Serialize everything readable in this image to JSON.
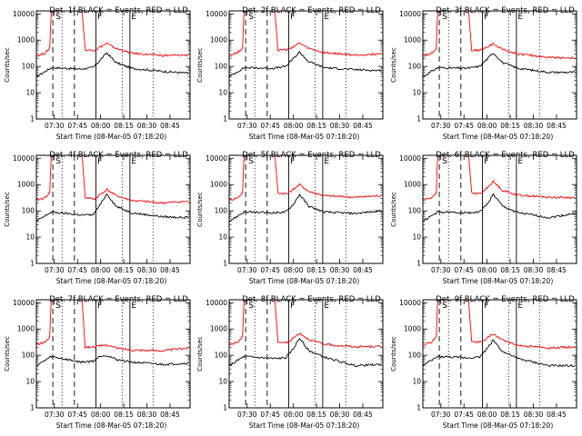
{
  "chart_data": {
    "type": "line",
    "layout": "3x3 grid",
    "shared": {
      "ylabel": "Counts/sec",
      "xlabel": "Start Time (08-Mar-05 07:18:20)",
      "x_range": [
        "07:18:20",
        "08:58:00"
      ],
      "x_ticks": [
        "07:30",
        "07:45",
        "08:00",
        "08:15",
        "08:30",
        "08:45"
      ],
      "y_scale": "log",
      "ylim": [
        1,
        13000
      ],
      "y_ticks": [
        "1",
        "10",
        "100",
        "1000",
        "10000"
      ],
      "series_colors": {
        "events": "#000000",
        "lld": "#ff0000"
      },
      "markers": {
        "dashed_lines": [
          "07:29",
          "07:43"
        ],
        "dotted_lines": [
          "07:35",
          "08:14",
          "08:34"
        ],
        "solid_lines": [
          "07:57",
          "08:19"
        ],
        "top_letters": [
          {
            "text": "S",
            "at": "07:30"
          },
          {
            "text": "F",
            "at": "07:57"
          },
          {
            "text": "E",
            "at": "08:19"
          }
        ]
      }
    },
    "panels": [
      {
        "title": "Det. 1f BLACK = Events, RED = LLD",
        "events": [
          [
            "07:18:20",
            40
          ],
          [
            "07:25",
            70
          ],
          [
            "07:28",
            90
          ],
          [
            "07:47",
            80
          ],
          [
            "07:55",
            90
          ],
          [
            "08:00",
            180
          ],
          [
            "08:04",
            330
          ],
          [
            "08:10",
            140
          ],
          [
            "08:20",
            85
          ],
          [
            "08:40",
            65
          ],
          [
            "08:57",
            55
          ]
        ],
        "lld": [
          [
            "07:18:20",
            250
          ],
          [
            "07:24",
            320
          ],
          [
            "07:27",
            500
          ],
          [
            "07:28",
            13000
          ],
          [
            "07:48",
            13000
          ],
          [
            "07:50",
            420
          ],
          [
            "07:56",
            420
          ],
          [
            "08:04",
            750
          ],
          [
            "08:10",
            480
          ],
          [
            "08:20",
            320
          ],
          [
            "08:40",
            260
          ],
          [
            "08:57",
            270
          ]
        ]
      },
      {
        "title": "Det. 2f BLACK = Events, RED = LLD",
        "events": [
          [
            "07:18:20",
            40
          ],
          [
            "07:25",
            70
          ],
          [
            "07:28",
            90
          ],
          [
            "07:47",
            85
          ],
          [
            "07:55",
            100
          ],
          [
            "08:00",
            200
          ],
          [
            "08:04",
            350
          ],
          [
            "08:10",
            150
          ],
          [
            "08:20",
            90
          ],
          [
            "08:40",
            75
          ],
          [
            "08:57",
            70
          ]
        ],
        "lld": [
          [
            "07:18:20",
            250
          ],
          [
            "07:24",
            350
          ],
          [
            "07:27",
            500
          ],
          [
            "07:28",
            13000
          ],
          [
            "07:48",
            13000
          ],
          [
            "07:50",
            420
          ],
          [
            "07:56",
            430
          ],
          [
            "08:04",
            760
          ],
          [
            "08:10",
            480
          ],
          [
            "08:20",
            330
          ],
          [
            "08:40",
            270
          ],
          [
            "08:57",
            300
          ]
        ]
      },
      {
        "title": "Det. 3f BLACK = Events, RED = LLD",
        "events": [
          [
            "07:18:20",
            40
          ],
          [
            "07:25",
            70
          ],
          [
            "07:28",
            90
          ],
          [
            "07:47",
            85
          ],
          [
            "07:55",
            100
          ],
          [
            "08:00",
            190
          ],
          [
            "08:04",
            330
          ],
          [
            "08:10",
            140
          ],
          [
            "08:20",
            85
          ],
          [
            "08:40",
            60
          ],
          [
            "08:57",
            60
          ]
        ],
        "lld": [
          [
            "07:18:20",
            250
          ],
          [
            "07:24",
            320
          ],
          [
            "07:27",
            500
          ],
          [
            "07:28",
            13000
          ],
          [
            "07:48",
            13000
          ],
          [
            "07:50",
            410
          ],
          [
            "07:56",
            420
          ],
          [
            "08:04",
            720
          ],
          [
            "08:10",
            450
          ],
          [
            "08:20",
            300
          ],
          [
            "08:40",
            220
          ],
          [
            "08:57",
            210
          ]
        ]
      },
      {
        "title": "Det. 4f BLACK = Events, RED = LLD",
        "events": [
          [
            "07:18:20",
            40
          ],
          [
            "07:25",
            70
          ],
          [
            "07:28",
            90
          ],
          [
            "07:47",
            70
          ],
          [
            "07:55",
            70
          ],
          [
            "08:00",
            180
          ],
          [
            "08:04",
            450
          ],
          [
            "08:10",
            150
          ],
          [
            "08:20",
            85
          ],
          [
            "08:40",
            60
          ],
          [
            "08:57",
            55
          ]
        ],
        "lld": [
          [
            "07:18:20",
            250
          ],
          [
            "07:24",
            320
          ],
          [
            "07:27",
            500
          ],
          [
            "07:28",
            13000
          ],
          [
            "07:48",
            13000
          ],
          [
            "07:50",
            320
          ],
          [
            "07:56",
            280
          ],
          [
            "08:04",
            650
          ],
          [
            "08:10",
            380
          ],
          [
            "08:20",
            250
          ],
          [
            "08:40",
            200
          ],
          [
            "08:57",
            230
          ]
        ]
      },
      {
        "title": "Det. 5f BLACK = Events, RED = LLD",
        "events": [
          [
            "07:18:20",
            40
          ],
          [
            "07:25",
            70
          ],
          [
            "07:28",
            90
          ],
          [
            "07:47",
            85
          ],
          [
            "07:55",
            90
          ],
          [
            "08:00",
            180
          ],
          [
            "08:04",
            420
          ],
          [
            "08:10",
            150
          ],
          [
            "08:20",
            90
          ],
          [
            "08:40",
            80
          ],
          [
            "08:57",
            100
          ]
        ],
        "lld": [
          [
            "07:18:20",
            250
          ],
          [
            "07:24",
            320
          ],
          [
            "07:27",
            500
          ],
          [
            "07:28",
            13000
          ],
          [
            "07:48",
            13000
          ],
          [
            "07:50",
            480
          ],
          [
            "07:56",
            450
          ],
          [
            "08:04",
            1000
          ],
          [
            "08:10",
            550
          ],
          [
            "08:20",
            380
          ],
          [
            "08:40",
            330
          ],
          [
            "08:57",
            380
          ]
        ]
      },
      {
        "title": "Det. 6f BLACK = Events, RED = LLD",
        "events": [
          [
            "07:18:20",
            40
          ],
          [
            "07:25",
            70
          ],
          [
            "07:28",
            90
          ],
          [
            "07:47",
            85
          ],
          [
            "07:55",
            90
          ],
          [
            "08:00",
            180
          ],
          [
            "08:04",
            420
          ],
          [
            "08:10",
            150
          ],
          [
            "08:20",
            85
          ],
          [
            "08:40",
            55
          ],
          [
            "08:57",
            80
          ]
        ],
        "lld": [
          [
            "07:18:20",
            250
          ],
          [
            "07:24",
            320
          ],
          [
            "07:27",
            500
          ],
          [
            "07:28",
            13000
          ],
          [
            "07:48",
            13000
          ],
          [
            "07:50",
            470
          ],
          [
            "07:56",
            450
          ],
          [
            "08:04",
            1300
          ],
          [
            "08:10",
            600
          ],
          [
            "08:20",
            400
          ],
          [
            "08:40",
            330
          ],
          [
            "08:57",
            320
          ]
        ]
      },
      {
        "title": "Det. 7f BLACK = Events, RED = LLD",
        "events": [
          [
            "07:18:20",
            40
          ],
          [
            "07:25",
            70
          ],
          [
            "07:28",
            90
          ],
          [
            "07:47",
            55
          ],
          [
            "07:55",
            60
          ],
          [
            "08:00",
            95
          ],
          [
            "08:04",
            100
          ],
          [
            "08:10",
            70
          ],
          [
            "08:20",
            55
          ],
          [
            "08:40",
            45
          ],
          [
            "08:57",
            50
          ]
        ],
        "lld": [
          [
            "07:18:20",
            250
          ],
          [
            "07:24",
            320
          ],
          [
            "07:27",
            500
          ],
          [
            "07:28",
            13000
          ],
          [
            "07:48",
            13000
          ],
          [
            "07:50",
            200
          ],
          [
            "07:56",
            210
          ],
          [
            "08:04",
            250
          ],
          [
            "08:10",
            190
          ],
          [
            "08:20",
            160
          ],
          [
            "08:40",
            150
          ],
          [
            "08:57",
            190
          ]
        ]
      },
      {
        "title": "Det. 8f BLACK = Events, RED = LLD",
        "events": [
          [
            "07:18:20",
            40
          ],
          [
            "07:25",
            70
          ],
          [
            "07:28",
            90
          ],
          [
            "07:47",
            75
          ],
          [
            "07:55",
            80
          ],
          [
            "08:00",
            180
          ],
          [
            "08:04",
            450
          ],
          [
            "08:10",
            150
          ],
          [
            "08:20",
            85
          ],
          [
            "08:40",
            40
          ],
          [
            "08:57",
            45
          ]
        ],
        "lld": [
          [
            "07:18:20",
            250
          ],
          [
            "07:24",
            320
          ],
          [
            "07:27",
            500
          ],
          [
            "07:28",
            13000
          ],
          [
            "07:48",
            13000
          ],
          [
            "07:50",
            320
          ],
          [
            "07:56",
            300
          ],
          [
            "08:04",
            700
          ],
          [
            "08:10",
            400
          ],
          [
            "08:20",
            260
          ],
          [
            "08:40",
            210
          ],
          [
            "08:57",
            220
          ]
        ]
      },
      {
        "title": "Det. 9f BLACK = Events, RED = LLD",
        "events": [
          [
            "07:18:20",
            40
          ],
          [
            "07:25",
            70
          ],
          [
            "07:28",
            90
          ],
          [
            "07:47",
            80
          ],
          [
            "07:55",
            85
          ],
          [
            "08:00",
            180
          ],
          [
            "08:04",
            380
          ],
          [
            "08:10",
            140
          ],
          [
            "08:20",
            75
          ],
          [
            "08:40",
            40
          ],
          [
            "08:57",
            40
          ]
        ],
        "lld": [
          [
            "07:18:20",
            250
          ],
          [
            "07:24",
            320
          ],
          [
            "07:27",
            500
          ],
          [
            "07:28",
            13000
          ],
          [
            "07:48",
            13000
          ],
          [
            "07:50",
            330
          ],
          [
            "07:56",
            310
          ],
          [
            "08:04",
            650
          ],
          [
            "08:10",
            380
          ],
          [
            "08:20",
            240
          ],
          [
            "08:40",
            190
          ],
          [
            "08:57",
            210
          ]
        ]
      }
    ]
  }
}
